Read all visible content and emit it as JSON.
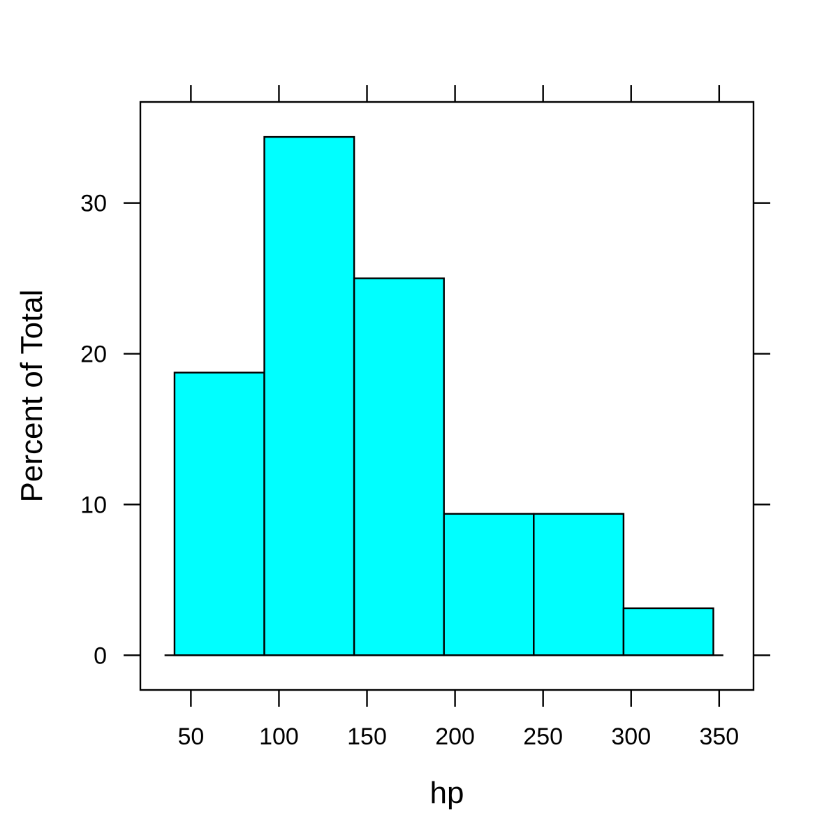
{
  "chart_data": {
    "type": "bar",
    "subtype": "histogram",
    "bins": [
      [
        40.7,
        91.7
      ],
      [
        91.7,
        142.7
      ],
      [
        142.7,
        193.7
      ],
      [
        193.7,
        244.7
      ],
      [
        244.7,
        295.7
      ],
      [
        295.7,
        346.7
      ]
    ],
    "values": [
      18.75,
      34.38,
      25.0,
      9.38,
      9.38,
      3.12
    ],
    "xlabel": "hp",
    "ylabel": "Percent of Total",
    "xlim": [
      21.3,
      369.5
    ],
    "ylim": [
      -2.3,
      36.7
    ],
    "xticks": [
      50,
      100,
      150,
      200,
      250,
      300,
      350
    ],
    "yticks": [
      0,
      10,
      20,
      30
    ],
    "bar_color": "#00ffff",
    "grid": false,
    "legend": "none"
  }
}
